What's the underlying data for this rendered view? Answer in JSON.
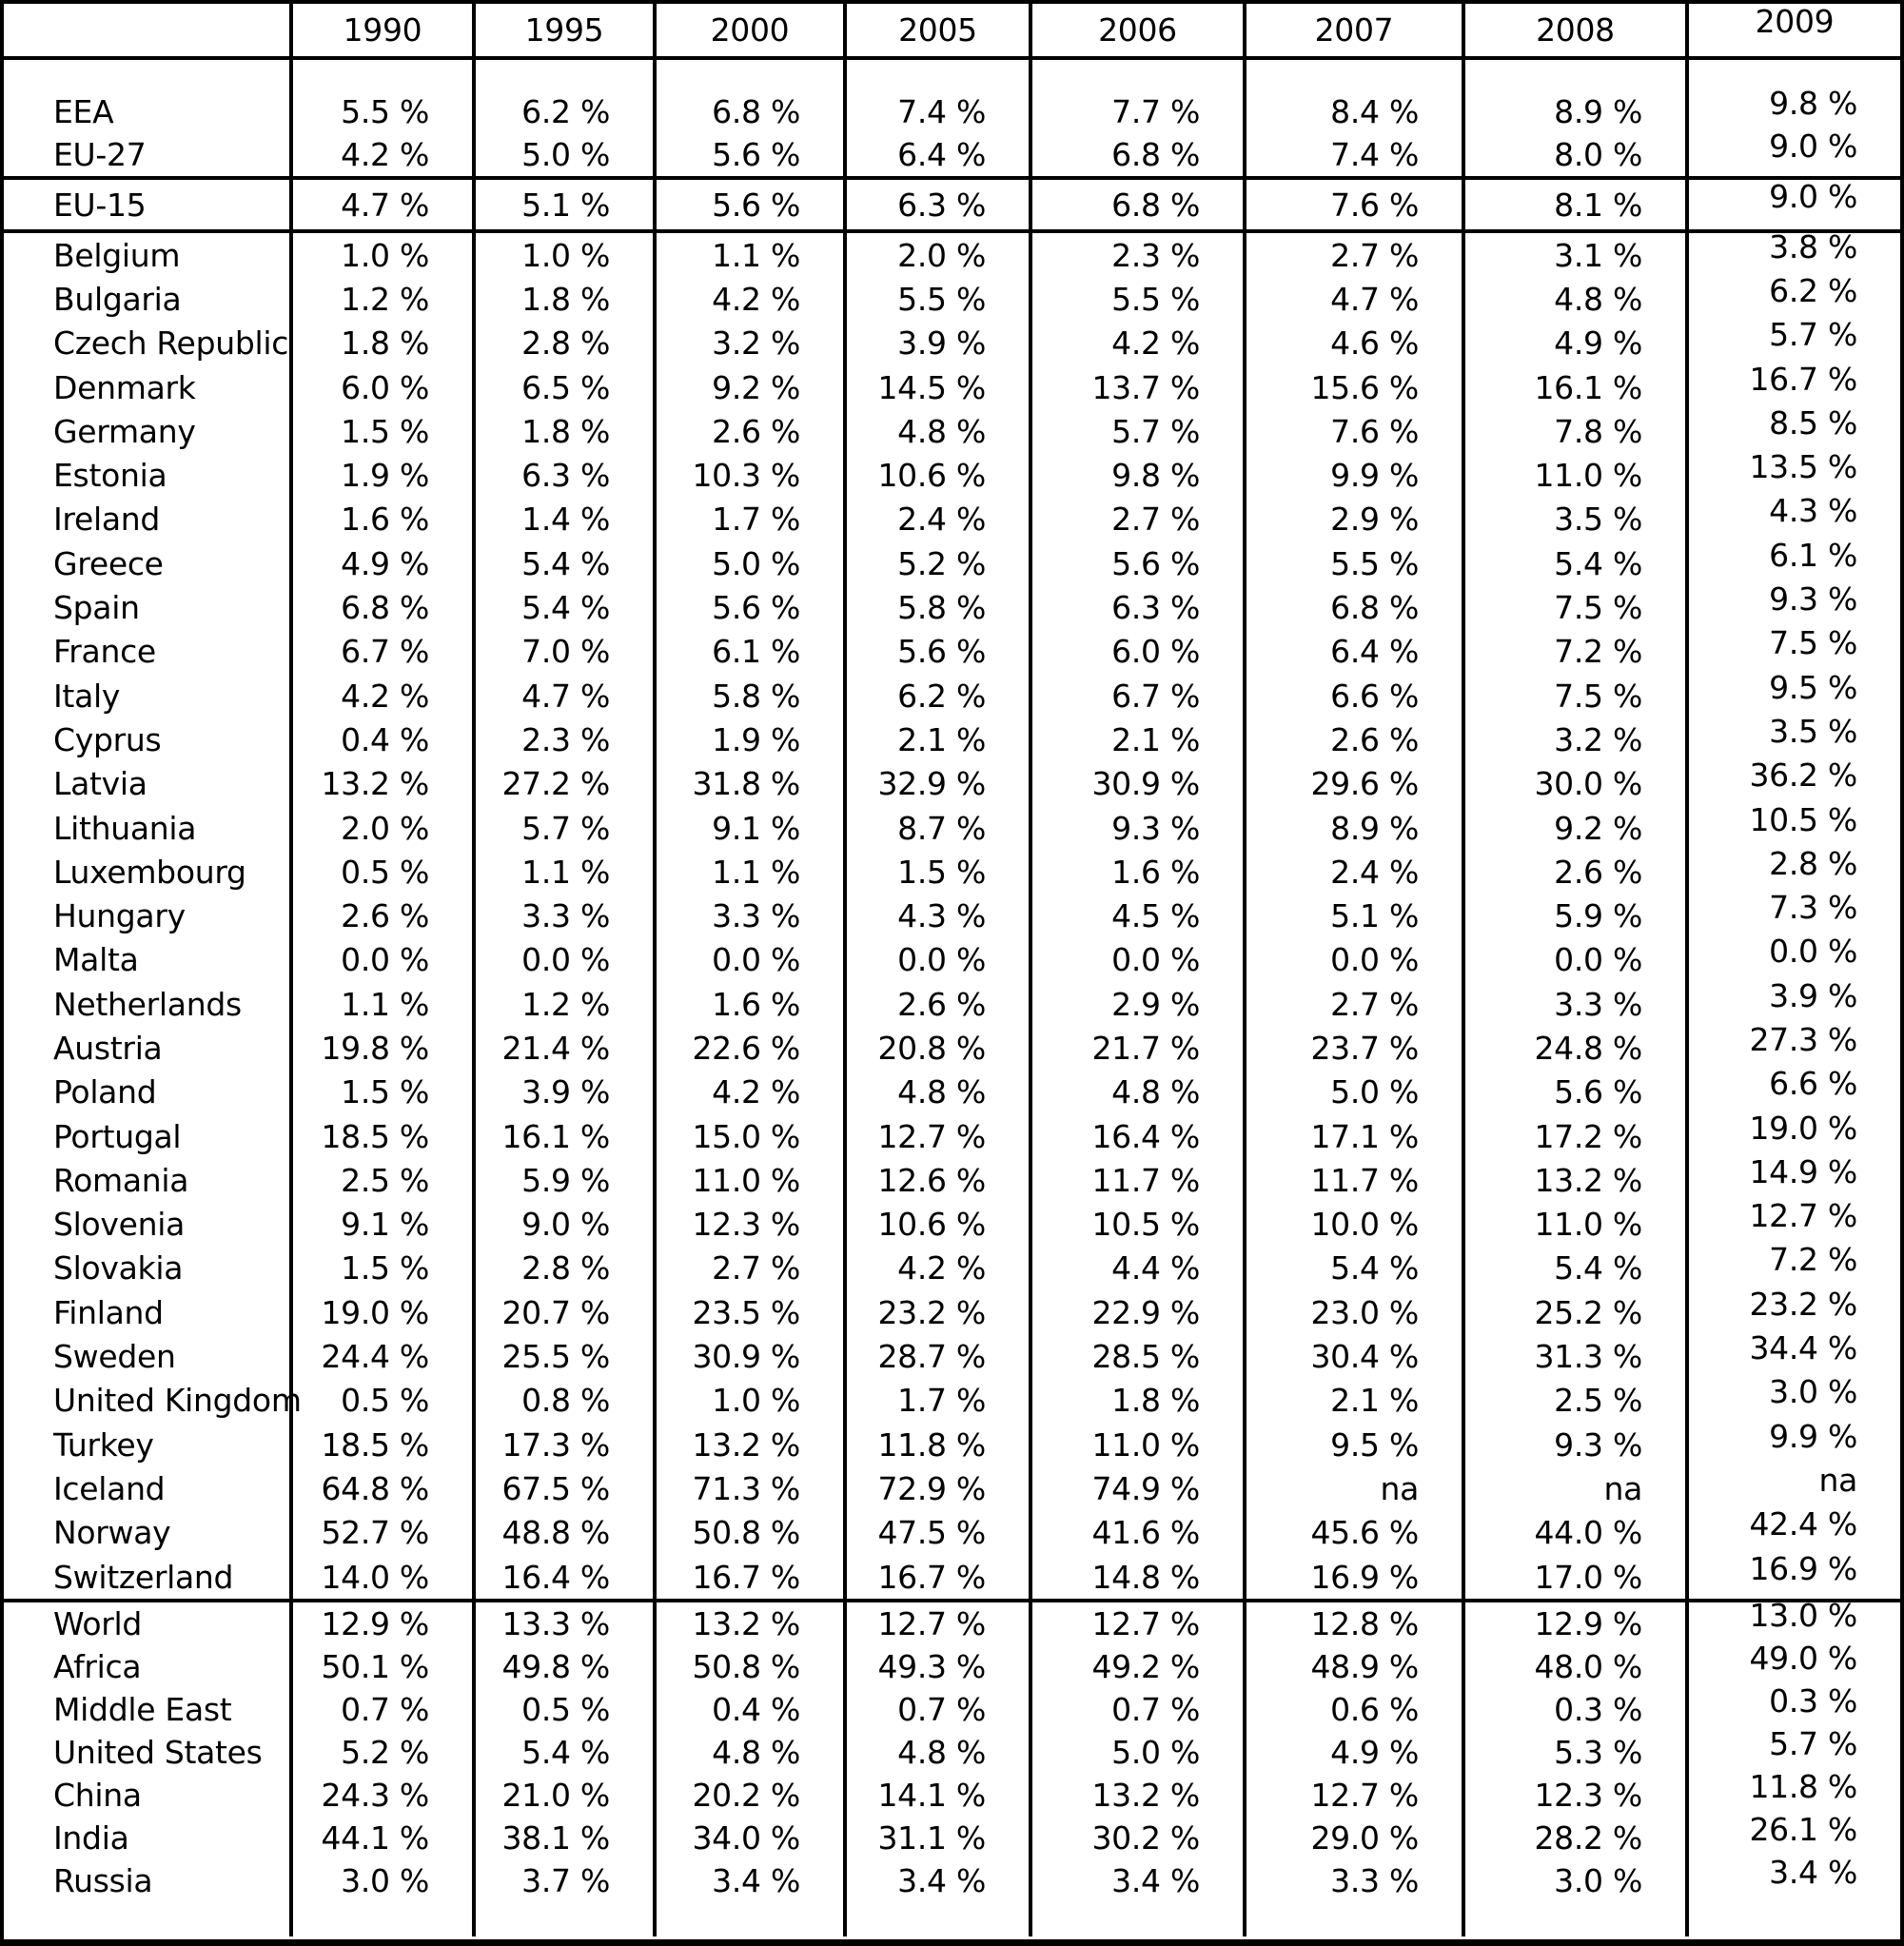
{
  "chart_data": {
    "type": "table",
    "unit": "%",
    "columns": [
      "",
      "1990",
      "1995",
      "2000",
      "2005",
      "2006",
      "2007",
      "2008",
      "2009"
    ],
    "sections": [
      {
        "rows": [
          [
            "EEA",
            "5.5 %",
            "6.2 %",
            "6.8 %",
            "7.4 %",
            "7.7 %",
            "8.4 %",
            "8.9 %",
            "9.8 %"
          ],
          [
            "EU-27",
            "4.2 %",
            "5.0 %",
            "5.6 %",
            "6.4 %",
            "6.8 %",
            "7.4 %",
            "8.0 %",
            "9.0 %"
          ]
        ]
      },
      {
        "rows": [
          [
            "EU-15",
            "4.7 %",
            "5.1 %",
            "5.6 %",
            "6.3 %",
            "6.8 %",
            "7.6 %",
            "8.1 %",
            "9.0 %"
          ]
        ]
      },
      {
        "rows": [
          [
            "Belgium",
            "1.0 %",
            "1.0 %",
            "1.1 %",
            "2.0 %",
            "2.3 %",
            "2.7 %",
            "3.1 %",
            "3.8 %"
          ],
          [
            "Bulgaria",
            "1.2 %",
            "1.8 %",
            "4.2 %",
            "5.5 %",
            "5.5 %",
            "4.7 %",
            "4.8 %",
            "6.2 %"
          ],
          [
            "Czech Republic",
            "1.8 %",
            "2.8 %",
            "3.2 %",
            "3.9 %",
            "4.2 %",
            "4.6 %",
            "4.9 %",
            "5.7 %"
          ],
          [
            "Denmark",
            "6.0 %",
            "6.5 %",
            "9.2 %",
            "14.5 %",
            "13.7 %",
            "15.6 %",
            "16.1 %",
            "16.7 %"
          ],
          [
            "Germany",
            "1.5 %",
            "1.8 %",
            "2.6 %",
            "4.8 %",
            "5.7 %",
            "7.6 %",
            "7.8 %",
            "8.5 %"
          ],
          [
            "Estonia",
            "1.9 %",
            "6.3 %",
            "10.3 %",
            "10.6 %",
            "9.8 %",
            "9.9 %",
            "11.0 %",
            "13.5 %"
          ],
          [
            "Ireland",
            "1.6 %",
            "1.4 %",
            "1.7 %",
            "2.4 %",
            "2.7 %",
            "2.9 %",
            "3.5 %",
            "4.3 %"
          ],
          [
            "Greece",
            "4.9 %",
            "5.4 %",
            "5.0 %",
            "5.2 %",
            "5.6 %",
            "5.5 %",
            "5.4 %",
            "6.1 %"
          ],
          [
            "Spain",
            "6.8 %",
            "5.4 %",
            "5.6 %",
            "5.8 %",
            "6.3 %",
            "6.8 %",
            "7.5 %",
            "9.3 %"
          ],
          [
            "France",
            "6.7 %",
            "7.0 %",
            "6.1 %",
            "5.6 %",
            "6.0 %",
            "6.4 %",
            "7.2 %",
            "7.5 %"
          ],
          [
            "Italy",
            "4.2 %",
            "4.7 %",
            "5.8 %",
            "6.2 %",
            "6.7 %",
            "6.6 %",
            "7.5 %",
            "9.5 %"
          ],
          [
            "Cyprus",
            "0.4 %",
            "2.3 %",
            "1.9 %",
            "2.1 %",
            "2.1 %",
            "2.6 %",
            "3.2 %",
            "3.5 %"
          ],
          [
            "Latvia",
            "13.2 %",
            "27.2 %",
            "31.8 %",
            "32.9 %",
            "30.9 %",
            "29.6 %",
            "30.0 %",
            "36.2 %"
          ],
          [
            "Lithuania",
            "2.0 %",
            "5.7 %",
            "9.1 %",
            "8.7 %",
            "9.3 %",
            "8.9 %",
            "9.2 %",
            "10.5 %"
          ],
          [
            "Luxembourg",
            "0.5 %",
            "1.1 %",
            "1.1 %",
            "1.5 %",
            "1.6 %",
            "2.4 %",
            "2.6 %",
            "2.8 %"
          ],
          [
            "Hungary",
            "2.6 %",
            "3.3 %",
            "3.3 %",
            "4.3 %",
            "4.5 %",
            "5.1 %",
            "5.9 %",
            "7.3 %"
          ],
          [
            "Malta",
            "0.0 %",
            "0.0 %",
            "0.0 %",
            "0.0 %",
            "0.0 %",
            "0.0 %",
            "0.0 %",
            "0.0 %"
          ],
          [
            "Netherlands",
            "1.1 %",
            "1.2 %",
            "1.6 %",
            "2.6 %",
            "2.9 %",
            "2.7 %",
            "3.3 %",
            "3.9 %"
          ],
          [
            "Austria",
            "19.8 %",
            "21.4 %",
            "22.6 %",
            "20.8 %",
            "21.7 %",
            "23.7 %",
            "24.8 %",
            "27.3 %"
          ],
          [
            "Poland",
            "1.5 %",
            "3.9 %",
            "4.2 %",
            "4.8 %",
            "4.8 %",
            "5.0 %",
            "5.6 %",
            "6.6 %"
          ],
          [
            "Portugal",
            "18.5 %",
            "16.1 %",
            "15.0 %",
            "12.7 %",
            "16.4 %",
            "17.1 %",
            "17.2 %",
            "19.0 %"
          ],
          [
            "Romania",
            "2.5 %",
            "5.9 %",
            "11.0 %",
            "12.6 %",
            "11.7 %",
            "11.7 %",
            "13.2 %",
            "14.9 %"
          ],
          [
            "Slovenia",
            "9.1 %",
            "9.0 %",
            "12.3 %",
            "10.6 %",
            "10.5 %",
            "10.0 %",
            "11.0 %",
            "12.7 %"
          ],
          [
            "Slovakia",
            "1.5 %",
            "2.8 %",
            "2.7 %",
            "4.2 %",
            "4.4 %",
            "5.4 %",
            "5.4 %",
            "7.2 %"
          ],
          [
            "Finland",
            "19.0 %",
            "20.7 %",
            "23.5 %",
            "23.2 %",
            "22.9 %",
            "23.0 %",
            "25.2 %",
            "23.2 %"
          ],
          [
            "Sweden",
            "24.4 %",
            "25.5 %",
            "30.9 %",
            "28.7 %",
            "28.5 %",
            "30.4 %",
            "31.3 %",
            "34.4 %"
          ],
          [
            "United Kingdom",
            "0.5 %",
            "0.8 %",
            "1.0 %",
            "1.7 %",
            "1.8 %",
            "2.1 %",
            "2.5 %",
            "3.0 %"
          ],
          [
            "Turkey",
            "18.5 %",
            "17.3 %",
            "13.2 %",
            "11.8 %",
            "11.0 %",
            "9.5 %",
            "9.3 %",
            "9.9 %"
          ],
          [
            "Iceland",
            "64.8 %",
            "67.5 %",
            "71.3 %",
            "72.9 %",
            "74.9 %",
            "na",
            "na",
            "na"
          ],
          [
            "Norway",
            "52.7 %",
            "48.8 %",
            "50.8 %",
            "47.5 %",
            "41.6 %",
            "45.6 %",
            "44.0 %",
            "42.4 %"
          ],
          [
            "Switzerland",
            "14.0 %",
            "16.4 %",
            "16.7 %",
            "16.7 %",
            "14.8 %",
            "16.9 %",
            "17.0 %",
            "16.9 %"
          ]
        ]
      },
      {
        "rows": [
          [
            "World",
            "12.9 %",
            "13.3 %",
            "13.2 %",
            "12.7 %",
            "12.7 %",
            "12.8 %",
            "12.9 %",
            "13.0 %"
          ],
          [
            "Africa",
            "50.1 %",
            "49.8 %",
            "50.8 %",
            "49.3 %",
            "49.2 %",
            "48.9 %",
            "48.0 %",
            "49.0 %"
          ],
          [
            "Middle East",
            "0.7 %",
            "0.5 %",
            "0.4 %",
            "0.7 %",
            "0.7 %",
            "0.6 %",
            "0.3 %",
            "0.3 %"
          ],
          [
            "United States",
            "5.2 %",
            "5.4 %",
            "4.8 %",
            "4.8 %",
            "5.0 %",
            "4.9 %",
            "5.3 %",
            "5.7 %"
          ],
          [
            "China",
            "24.3 %",
            "21.0 %",
            "20.2 %",
            "14.1 %",
            "13.2 %",
            "12.7 %",
            "12.3 %",
            "11.8 %"
          ],
          [
            "India",
            "44.1 %",
            "38.1 %",
            "34.0 %",
            "31.1 %",
            "30.2 %",
            "29.0 %",
            "28.2 %",
            "26.1 %"
          ],
          [
            "Russia",
            "3.0 %",
            "3.7 %",
            "3.4 %",
            "3.4 %",
            "3.4 %",
            "3.3 %",
            "3.0 %",
            "3.4 %"
          ]
        ]
      }
    ]
  }
}
